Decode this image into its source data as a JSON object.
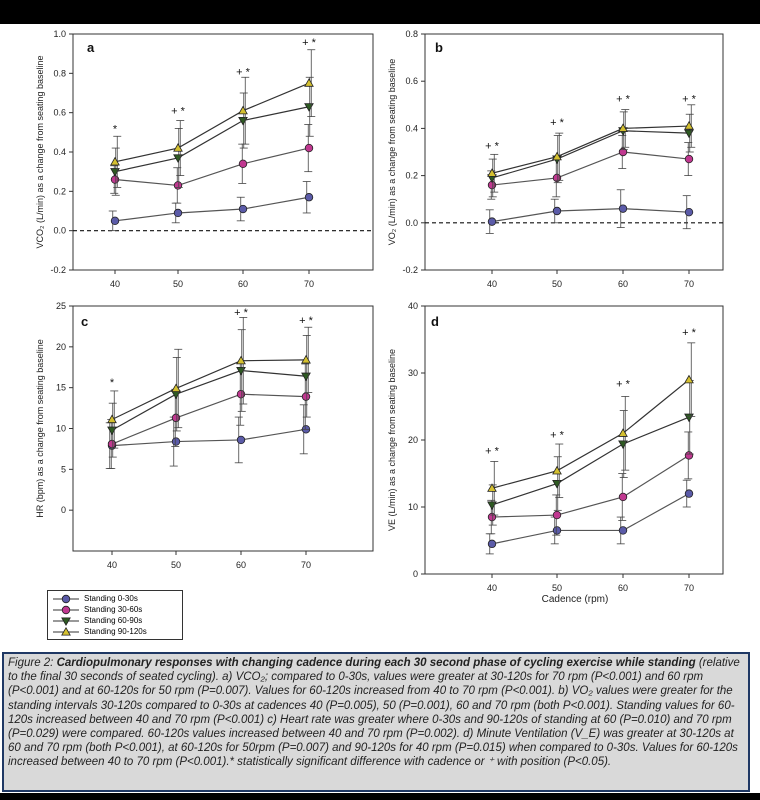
{
  "legend": [
    {
      "label": "Standing 0-30s",
      "marker": "circle",
      "fill": "#5b5ba8",
      "line": "#555555"
    },
    {
      "label": "Standing 30-60s",
      "marker": "circle",
      "fill": "#c03890",
      "line": "#555555"
    },
    {
      "label": "Standing 60-90s",
      "marker": "triangle-down",
      "fill": "#2e5a22",
      "line": "#333333"
    },
    {
      "label": "Standing 90-120s",
      "marker": "triangle-up",
      "fill": "#d4c030",
      "line": "#333333"
    }
  ],
  "caption": {
    "figure_label": "Figure 2: ",
    "bold_title": "Cardiopulmonary responses with changing cadence during each 30 second phase of cycling exercise while standing",
    "text": " (relative to the final 30 seconds of seated cycling).  a) VCO₂; compared to 0-30s, values were greater at 30-120s for 70 rpm (P<0.001) and 60 rpm (P<0.001) and at 60-120s for 50 rpm (P=0.007). Values for 60-120s increased from 40 to 70 rpm (P<0.001). b) VO₂ values were greater for the standing intervals 30-120s compared to 0-30s at cadences 40 (P=0.005), 50 (P=0.001), 60 and 70 rpm (both P<0.001). Standing values for 60-120s increased between 40 and 70 rpm (P<0.001) c) Heart rate was greater where 0-30s and 90-120s of standing at 60 (P=0.010) and 70 rpm (P=0.029) were compared. 60-120s values increased between 40 and 70 rpm (P=0.002). d) Minute Ventilation (V_E) was greater at 30-120s at 60 and 70 rpm (both P<0.001), at 60-120s for 50rpm (P=0.007) and 90-120s for 40 rpm (P=0.015) when compared to 0-30s. Values for 60-120s increased between 40 to 70 rpm (P<0.001).* statistically significant difference with cadence or ⁺ with position (P<0.05)."
  },
  "chart_data": [
    {
      "type": "line",
      "panel": "a",
      "ylabel": "VCO₂ (L/min) as a change from seating baseline",
      "xlabel": "",
      "categories": [
        40,
        50,
        60,
        70
      ],
      "ylim": [
        -0.2,
        1.0
      ],
      "yticks": [
        "-0.2",
        "0.0",
        "0.2",
        "0.4",
        "0.6",
        "0.8",
        "1.0"
      ],
      "ytick_values": [
        -0.2,
        0,
        0.2,
        0.4,
        0.6,
        0.8,
        1.0
      ],
      "baseline": 0,
      "annotations": [
        "*",
        "+ *",
        "+ *",
        "+ *"
      ],
      "annotation_y": [
        0.5,
        0.59,
        0.79,
        0.94
      ],
      "series": [
        {
          "name": "Standing 0-30s",
          "values": [
            0.05,
            0.09,
            0.11,
            0.17
          ],
          "err": [
            0.05,
            0.05,
            0.06,
            0.08
          ]
        },
        {
          "name": "Standing 30-60s",
          "values": [
            0.26,
            0.23,
            0.34,
            0.42
          ],
          "err": [
            0.07,
            0.09,
            0.1,
            0.12
          ]
        },
        {
          "name": "Standing 60-90s",
          "values": [
            0.3,
            0.37,
            0.56,
            0.63
          ],
          "err": [
            0.12,
            0.15,
            0.14,
            0.15
          ]
        },
        {
          "name": "Standing 90-120s",
          "values": [
            0.35,
            0.42,
            0.61,
            0.75
          ],
          "err": [
            0.13,
            0.14,
            0.17,
            0.17
          ]
        }
      ]
    },
    {
      "type": "line",
      "panel": "b",
      "ylabel": "VO₂ (L/min) as a change from seating baseline",
      "xlabel": "",
      "categories": [
        40,
        50,
        60,
        70
      ],
      "ylim": [
        -0.2,
        0.8
      ],
      "yticks": [
        "-0.2",
        "0.0",
        "0.2",
        "0.4",
        "0.6",
        "0.8"
      ],
      "ytick_values": [
        -0.2,
        0,
        0.2,
        0.4,
        0.6,
        0.8
      ],
      "baseline": 0,
      "annotations": [
        "+ *",
        "+ *",
        "+ *",
        "+ *"
      ],
      "annotation_y": [
        0.31,
        0.41,
        0.51,
        0.51
      ],
      "series": [
        {
          "name": "Standing 0-30s",
          "values": [
            0.005,
            0.05,
            0.06,
            0.045
          ],
          "err": [
            0.05,
            0.05,
            0.08,
            0.07
          ]
        },
        {
          "name": "Standing 30-60s",
          "values": [
            0.16,
            0.19,
            0.3,
            0.27
          ],
          "err": [
            0.06,
            0.08,
            0.07,
            0.07
          ]
        },
        {
          "name": "Standing 60-90s",
          "values": [
            0.19,
            0.27,
            0.39,
            0.38
          ],
          "err": [
            0.08,
            0.1,
            0.08,
            0.08
          ]
        },
        {
          "name": "Standing 90-120s",
          "values": [
            0.21,
            0.28,
            0.4,
            0.41
          ],
          "err": [
            0.08,
            0.1,
            0.08,
            0.09
          ]
        }
      ]
    },
    {
      "type": "line",
      "panel": "c",
      "ylabel": "HR (bpm) as a change from seating baseline",
      "xlabel": "",
      "categories": [
        40,
        50,
        60,
        70
      ],
      "ylim": [
        -5,
        25
      ],
      "yticks": [
        "0",
        "5",
        "10",
        "15",
        "20",
        "25"
      ],
      "ytick_values": [
        0,
        5,
        10,
        15,
        20,
        25
      ],
      "baseline": null,
      "annotations": [
        "*",
        "",
        "+ *",
        "+ *"
      ],
      "annotation_y": [
        15.2,
        null,
        23.8,
        22.8
      ],
      "series": [
        {
          "name": "Standing 0-30s",
          "values": [
            7.9,
            8.4,
            8.6,
            9.9
          ],
          "err": [
            2.8,
            3.0,
            2.8,
            3.0
          ]
        },
        {
          "name": "Standing 30-60s",
          "values": [
            8.1,
            11.3,
            14.2,
            13.9
          ],
          "err": [
            3.0,
            3.5,
            3.8,
            4.0
          ]
        },
        {
          "name": "Standing 60-90s",
          "values": [
            9.8,
            14.2,
            17.1,
            16.4
          ],
          "err": [
            3.3,
            4.5,
            5.0,
            5.0
          ]
        },
        {
          "name": "Standing 90-120s",
          "values": [
            11.1,
            14.9,
            18.3,
            18.4
          ],
          "err": [
            3.5,
            4.8,
            5.3,
            4.0
          ]
        }
      ]
    },
    {
      "type": "line",
      "panel": "d",
      "ylabel": "VE (L/min) as a change from seating baseline",
      "xlabel": "Cadence (rpm)",
      "categories": [
        40,
        50,
        60,
        70
      ],
      "ylim": [
        0,
        40
      ],
      "yticks": [
        "0",
        "10",
        "20",
        "30",
        "40"
      ],
      "ytick_values": [
        0,
        10,
        20,
        30,
        40
      ],
      "baseline": null,
      "annotations": [
        "+ *",
        "+ *",
        "+ *",
        "+ *"
      ],
      "annotation_y": [
        17.8,
        20.2,
        27.8,
        35.5
      ],
      "series": [
        {
          "name": "Standing 0-30s",
          "values": [
            4.5,
            6.5,
            6.5,
            12.0
          ],
          "err": [
            1.5,
            2.0,
            2.0,
            2.0
          ]
        },
        {
          "name": "Standing 30-60s",
          "values": [
            8.5,
            8.8,
            11.5,
            17.7
          ],
          "err": [
            2.5,
            3.0,
            3.5,
            3.5
          ]
        },
        {
          "name": "Standing 60-90s",
          "values": [
            10.3,
            13.5,
            19.4,
            23.4
          ],
          "err": [
            3.0,
            4.0,
            5.0,
            5.5
          ]
        },
        {
          "name": "Standing 90-120s",
          "values": [
            12.8,
            15.4,
            21.0,
            29.0
          ],
          "err": [
            4.0,
            4.0,
            5.5,
            5.5
          ]
        }
      ]
    }
  ]
}
